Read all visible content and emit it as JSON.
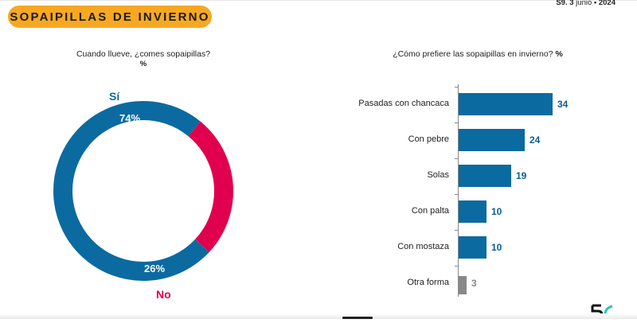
{
  "header": {
    "title": "SOPAIPILLAS DE INVIERNO",
    "date_prefix": "S9. 3 ",
    "date_month": "junio",
    "date_sep": " • ",
    "date_year": "2024"
  },
  "colors": {
    "accent": "#f7a823",
    "blue": "#0b6aa0",
    "magenta": "#e0004d",
    "gray": "#888888"
  },
  "chart_data": [
    {
      "type": "pie",
      "title": "Cuando llueve, ¿comes sopaipillas?",
      "unit": "%",
      "slices": [
        {
          "label": "Sí",
          "value": 74,
          "value_label": "74%",
          "color": "#0b6aa0"
        },
        {
          "label": "No",
          "value": 26,
          "value_label": "26%",
          "color": "#e0004d"
        }
      ]
    },
    {
      "type": "bar",
      "orientation": "horizontal",
      "title": "¿Cómo prefiere las sopaipillas en invierno?",
      "unit": "%",
      "categories": [
        "Pasadas con chancaca",
        "Con pebre",
        "Solas",
        "Con palta",
        "Con mostaza",
        "Otra forma"
      ],
      "values": [
        34,
        24,
        19,
        10,
        10,
        3
      ],
      "colors": [
        "#0b6aa0",
        "#0b6aa0",
        "#0b6aa0",
        "#0b6aa0",
        "#0b6aa0",
        "#888888"
      ]
    }
  ]
}
